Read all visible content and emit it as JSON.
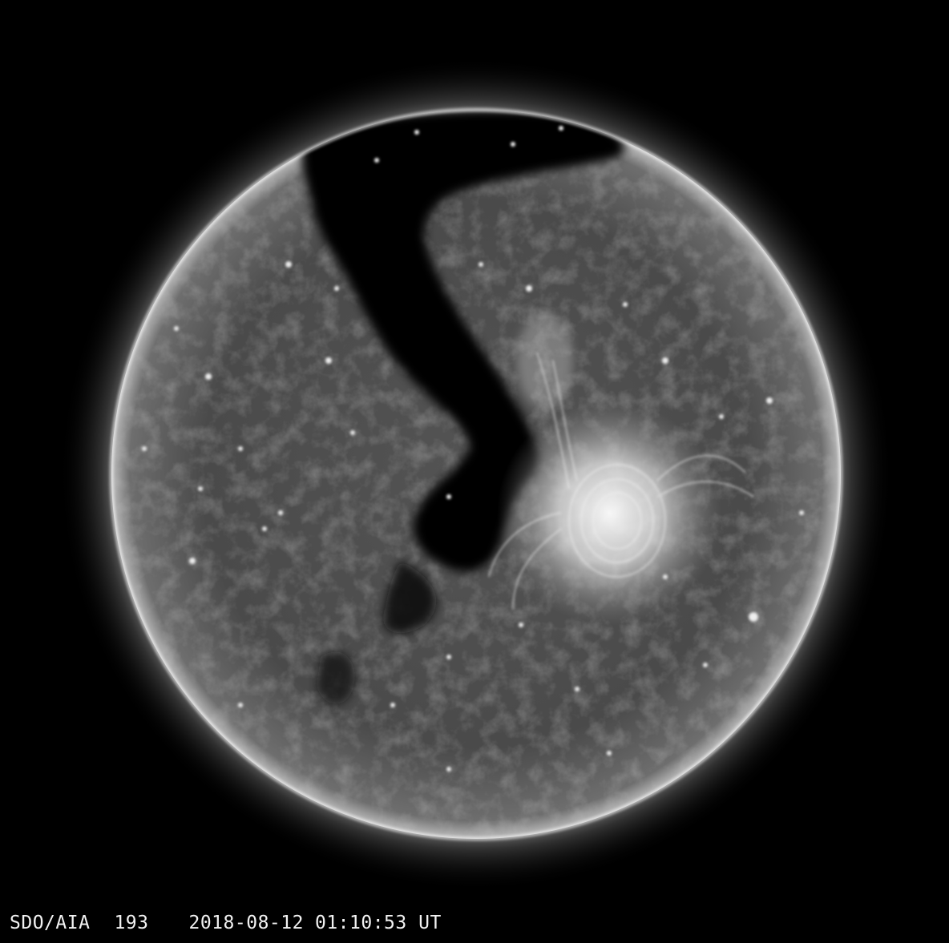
{
  "image": {
    "subject": "solar disk (extreme ultraviolet)",
    "colors": {
      "background": "#000000",
      "disk_base": "#4a4a4a",
      "corona_glow": "#e6e6e6",
      "coronal_hole": "#050505",
      "active_region": "#f4f4f4",
      "caption_text": "#f2f2f2"
    }
  },
  "caption": {
    "instrument": "SDO/AIA",
    "wavelength": "193",
    "date": "2018-08-12",
    "time": "01:10:53",
    "timezone": "UT"
  }
}
